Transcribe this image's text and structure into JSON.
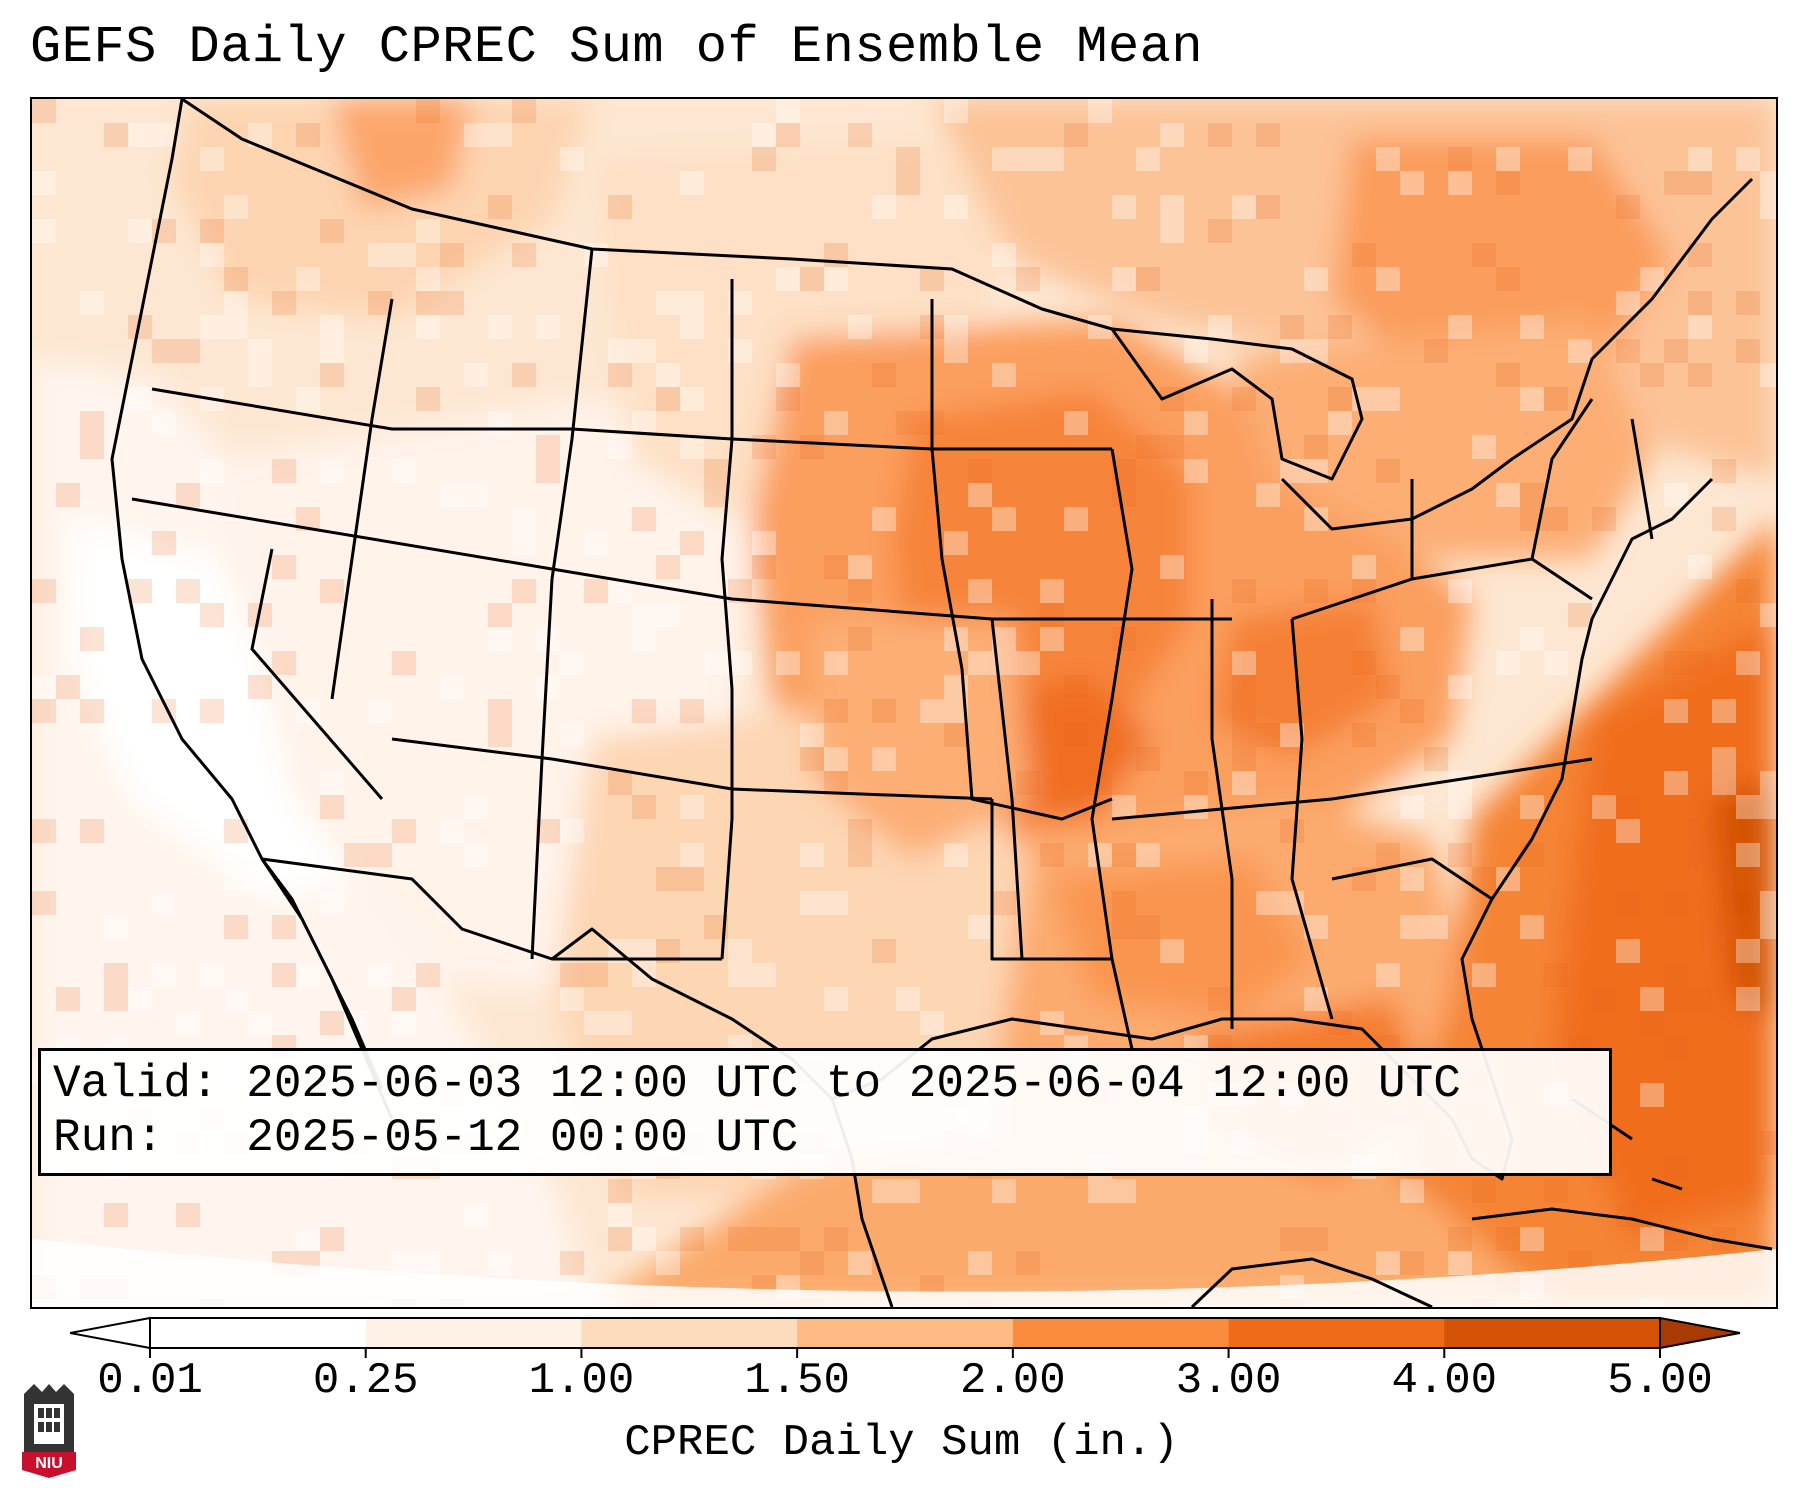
{
  "title": "GEFS Daily CPREC Sum of Ensemble Mean",
  "info": {
    "valid_line": "Valid: 2025-06-03 12:00 UTC to 2025-06-04 12:00 UTC",
    "run_line": "Run:   2025-05-12 00:00 UTC"
  },
  "colorbar": {
    "label": "CPREC Daily Sum (in.)",
    "ticks": [
      "0.01",
      "0.25",
      "1.00",
      "1.50",
      "2.00",
      "3.00",
      "4.00",
      "5.00"
    ],
    "colors": [
      "#ffffff",
      "#fef1e6",
      "#fddbbd",
      "#fdbb83",
      "#fb8c3e",
      "#f06b19",
      "#d45306",
      "#a83a03"
    ],
    "extend": "both"
  },
  "map": {
    "projection": "Lambert conformal, CONUS",
    "variable": "CPREC daily sum of ensemble mean",
    "units": "in.",
    "max_region": "Atlantic east of the Southeast US coast"
  },
  "logo": {
    "text": "NIU",
    "colors": {
      "building": "#333333",
      "banner": "#c8102e"
    }
  },
  "icons": [
    "logo-icon"
  ]
}
